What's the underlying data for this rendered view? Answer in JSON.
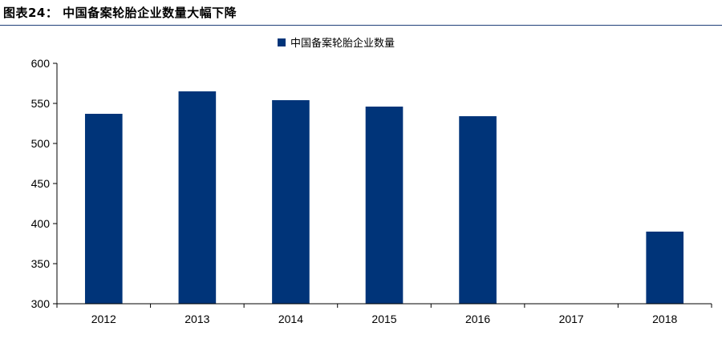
{
  "figure": {
    "title": "图表24： 中国备案轮胎企业数量大幅下降"
  },
  "colors": {
    "bar": "#003479",
    "rule": "#1f3f7a",
    "axis": "#000000"
  },
  "chart_data": {
    "type": "bar",
    "categories": [
      "2012",
      "2013",
      "2014",
      "2015",
      "2016",
      "2017",
      "2018"
    ],
    "series": [
      {
        "name": "中国备案轮胎企业数量",
        "values": [
          537,
          565,
          554,
          546,
          534,
          null,
          390
        ]
      }
    ],
    "ylim": [
      300,
      600
    ],
    "yticks": [
      300,
      350,
      400,
      450,
      500,
      550,
      600
    ],
    "grid": false,
    "legend": "top-center"
  }
}
